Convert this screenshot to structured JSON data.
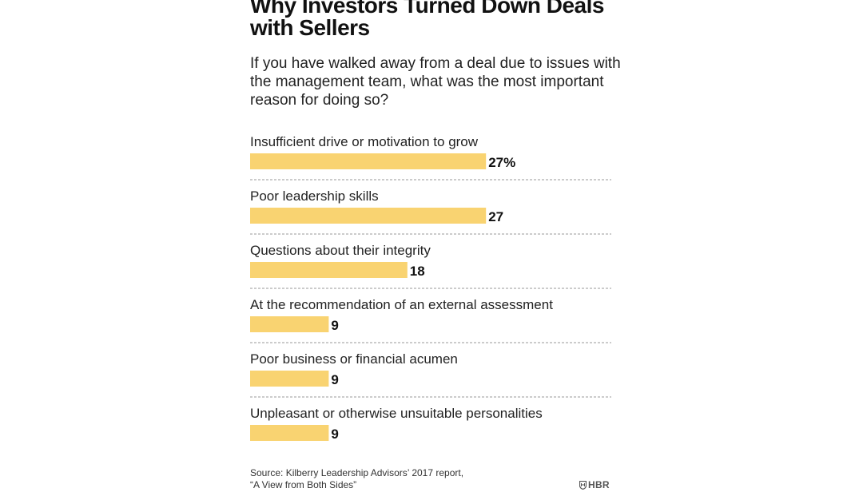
{
  "chart_data": {
    "type": "bar",
    "orientation": "horizontal",
    "title": "Why Investors Turned Down Deals with Sellers",
    "subtitle": "If you have walked away from a deal due to issues with the management team, what was the most important reason for doing so?",
    "categories": [
      "Insufficient drive or motivation to grow",
      "Poor leadership skills",
      "Questions about their integrity",
      "At the recommendation of an external assessment",
      "Poor business or financial acumen",
      "Unpleasant or otherwise unsuitable personalities"
    ],
    "values": [
      27,
      27,
      18,
      9,
      9,
      9
    ],
    "value_labels": [
      "27%",
      "27",
      "18",
      "9",
      "9",
      "9"
    ],
    "unit": "%",
    "xlim": [
      0,
      30
    ],
    "bar_color": "#F9D371",
    "divider_color": "#9a9a9a"
  },
  "footer": {
    "source_line1": "Source: Kilberry Leadership Advisors’ 2017 report,",
    "source_line2": "“A View from Both Sides”",
    "logo_text": "HBR"
  }
}
